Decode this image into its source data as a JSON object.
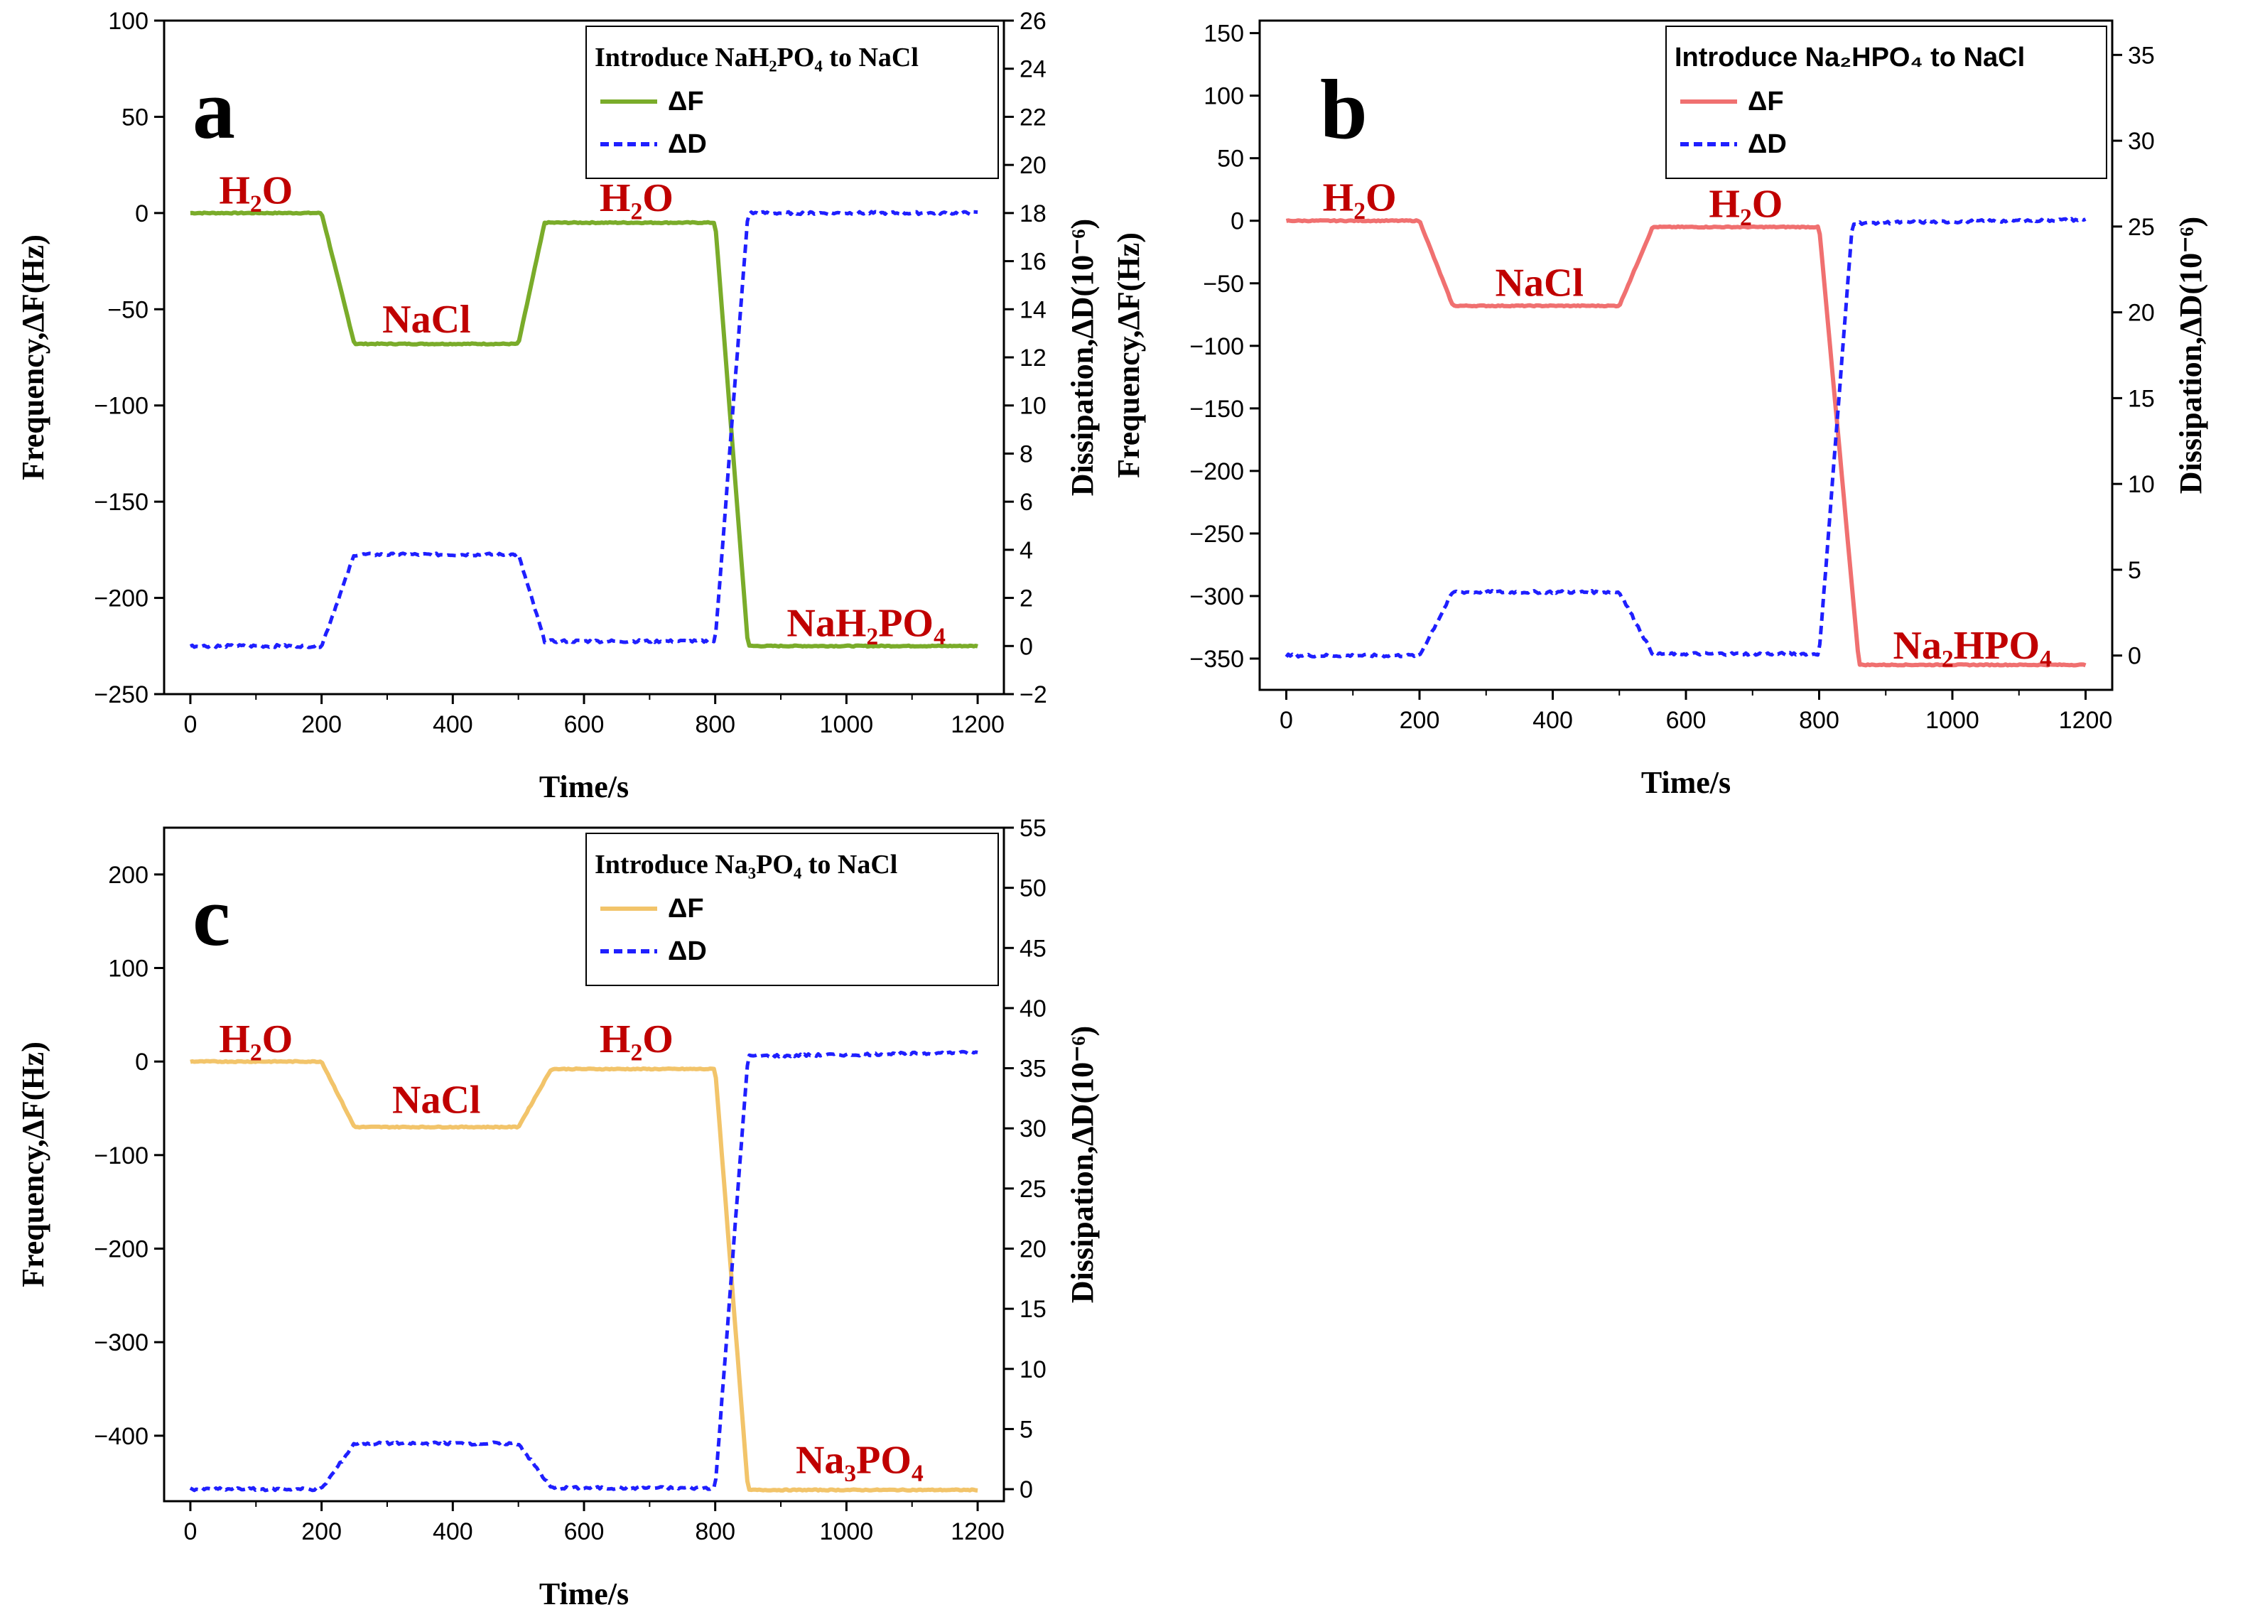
{
  "figure": {
    "colors": {
      "dissipation": "#1f1fff",
      "annotation": "#c00000",
      "axis": "#000000"
    }
  },
  "chart_data": [
    {
      "panel": "a",
      "type": "line",
      "xlabel": "Time/s",
      "ylabel": "Frequency,ΔF(Hz)",
      "y2label": "Dissipation,ΔD(10⁻⁶)",
      "xlim": [
        -40,
        1240
      ],
      "ylim": [
        -250,
        100
      ],
      "y2lim": [
        -2,
        26
      ],
      "xticks": [
        0,
        200,
        400,
        600,
        800,
        1000,
        1200
      ],
      "yticks": [
        100,
        50,
        0,
        -50,
        -100,
        -150,
        -200,
        -250
      ],
      "y2ticks": [
        26,
        24,
        22,
        20,
        18,
        16,
        14,
        12,
        10,
        8,
        6,
        4,
        2,
        0,
        -2
      ],
      "legend": {
        "title": "Introduce NaH₂PO₄ to NaCl",
        "entries": [
          "ΔF",
          "ΔD"
        ],
        "position": "top-right"
      },
      "series": [
        {
          "name": "ΔF",
          "axis": "left",
          "color": "#7aac2a",
          "style": "solid",
          "x": [
            0,
            200,
            250,
            500,
            540,
            800,
            850,
            1200
          ],
          "y": [
            0,
            0,
            -68,
            -68,
            -5,
            -5,
            -225,
            -225
          ]
        },
        {
          "name": "ΔD",
          "axis": "right",
          "color": "#1f1fff",
          "style": "dashed",
          "x": [
            0,
            200,
            250,
            500,
            540,
            800,
            850,
            1200
          ],
          "y": [
            0,
            0,
            3.8,
            3.8,
            0.2,
            0.2,
            18,
            18
          ]
        }
      ],
      "annotations": [
        {
          "text": "H₂O",
          "x": 100,
          "y": 5
        },
        {
          "text": "NaCl",
          "x": 360,
          "y": -62
        },
        {
          "text": "H₂O",
          "x": 680,
          "y": 1
        },
        {
          "text": "NaH₂PO₄",
          "x": 1030,
          "y": -220
        }
      ]
    },
    {
      "panel": "b",
      "type": "line",
      "xlabel": "Time/s",
      "ylabel": "Frequency,ΔF(Hz)",
      "y2label": "Dissipation,ΔD(10⁻⁶)",
      "xlim": [
        -40,
        1240
      ],
      "ylim": [
        -375,
        160
      ],
      "y2lim": [
        -2,
        37
      ],
      "xticks": [
        0,
        200,
        400,
        600,
        800,
        1000,
        1200
      ],
      "yticks": [
        150,
        100,
        50,
        0,
        -50,
        -100,
        -150,
        -200,
        -250,
        -300,
        -350
      ],
      "y2ticks": [
        35,
        30,
        25,
        20,
        15,
        10,
        5,
        0
      ],
      "legend": {
        "title": "Introduce Na₂HPO₄ to NaCl",
        "entries": [
          "ΔF",
          "ΔD"
        ],
        "position": "top-right"
      },
      "series": [
        {
          "name": "ΔF",
          "axis": "left",
          "color": "#f07070",
          "style": "solid",
          "x": [
            0,
            200,
            250,
            500,
            550,
            800,
            860,
            1200
          ],
          "y": [
            0,
            0,
            -68,
            -68,
            -5,
            -5,
            -355,
            -355
          ]
        },
        {
          "name": "ΔD",
          "axis": "right",
          "color": "#1f1fff",
          "style": "dashed",
          "x": [
            0,
            200,
            250,
            500,
            550,
            800,
            850,
            1200
          ],
          "y": [
            0,
            0,
            3.7,
            3.7,
            0.1,
            0.1,
            25.2,
            25.4
          ]
        }
      ],
      "annotations": [
        {
          "text": "H₂O",
          "x": 110,
          "y": 8
        },
        {
          "text": "NaCl",
          "x": 380,
          "y": -60
        },
        {
          "text": "H₂O",
          "x": 690,
          "y": 3
        },
        {
          "text": "Na₂HPO₄",
          "x": 1030,
          "y": -350
        }
      ]
    },
    {
      "panel": "c",
      "type": "line",
      "xlabel": "Time/s",
      "ylabel": "Frequency,ΔF(Hz)",
      "y2label": "Dissipation,ΔD(10⁻⁶)",
      "xlim": [
        -40,
        1240
      ],
      "ylim": [
        -470,
        250
      ],
      "y2lim": [
        -1,
        55
      ],
      "xticks": [
        0,
        200,
        400,
        600,
        800,
        1000,
        1200
      ],
      "yticks": [
        200,
        100,
        0,
        -100,
        -200,
        -300,
        -400
      ],
      "y2ticks": [
        55,
        50,
        45,
        40,
        35,
        30,
        25,
        20,
        15,
        10,
        5,
        0
      ],
      "legend": {
        "title": "Introduce Na₃PO₄ to NaCl",
        "entries": [
          "ΔF",
          "ΔD"
        ],
        "position": "top-right"
      },
      "series": [
        {
          "name": "ΔF",
          "axis": "left",
          "color": "#f2c46a",
          "style": "solid",
          "x": [
            0,
            200,
            250,
            500,
            550,
            800,
            850,
            1200
          ],
          "y": [
            0,
            0,
            -70,
            -70,
            -8,
            -8,
            -458,
            -458
          ]
        },
        {
          "name": "ΔD",
          "axis": "right",
          "color": "#1f1fff",
          "style": "dashed",
          "x": [
            0,
            200,
            250,
            500,
            550,
            800,
            850,
            1200
          ],
          "y": [
            0,
            0,
            3.8,
            3.8,
            0.1,
            0.1,
            36,
            36.3
          ]
        }
      ],
      "annotations": [
        {
          "text": "H₂O",
          "x": 100,
          "y": 10
        },
        {
          "text": "NaCl",
          "x": 375,
          "y": -55
        },
        {
          "text": "H₂O",
          "x": 680,
          "y": 10
        },
        {
          "text": "Na₃PO₄",
          "x": 1020,
          "y": -440
        }
      ]
    }
  ]
}
